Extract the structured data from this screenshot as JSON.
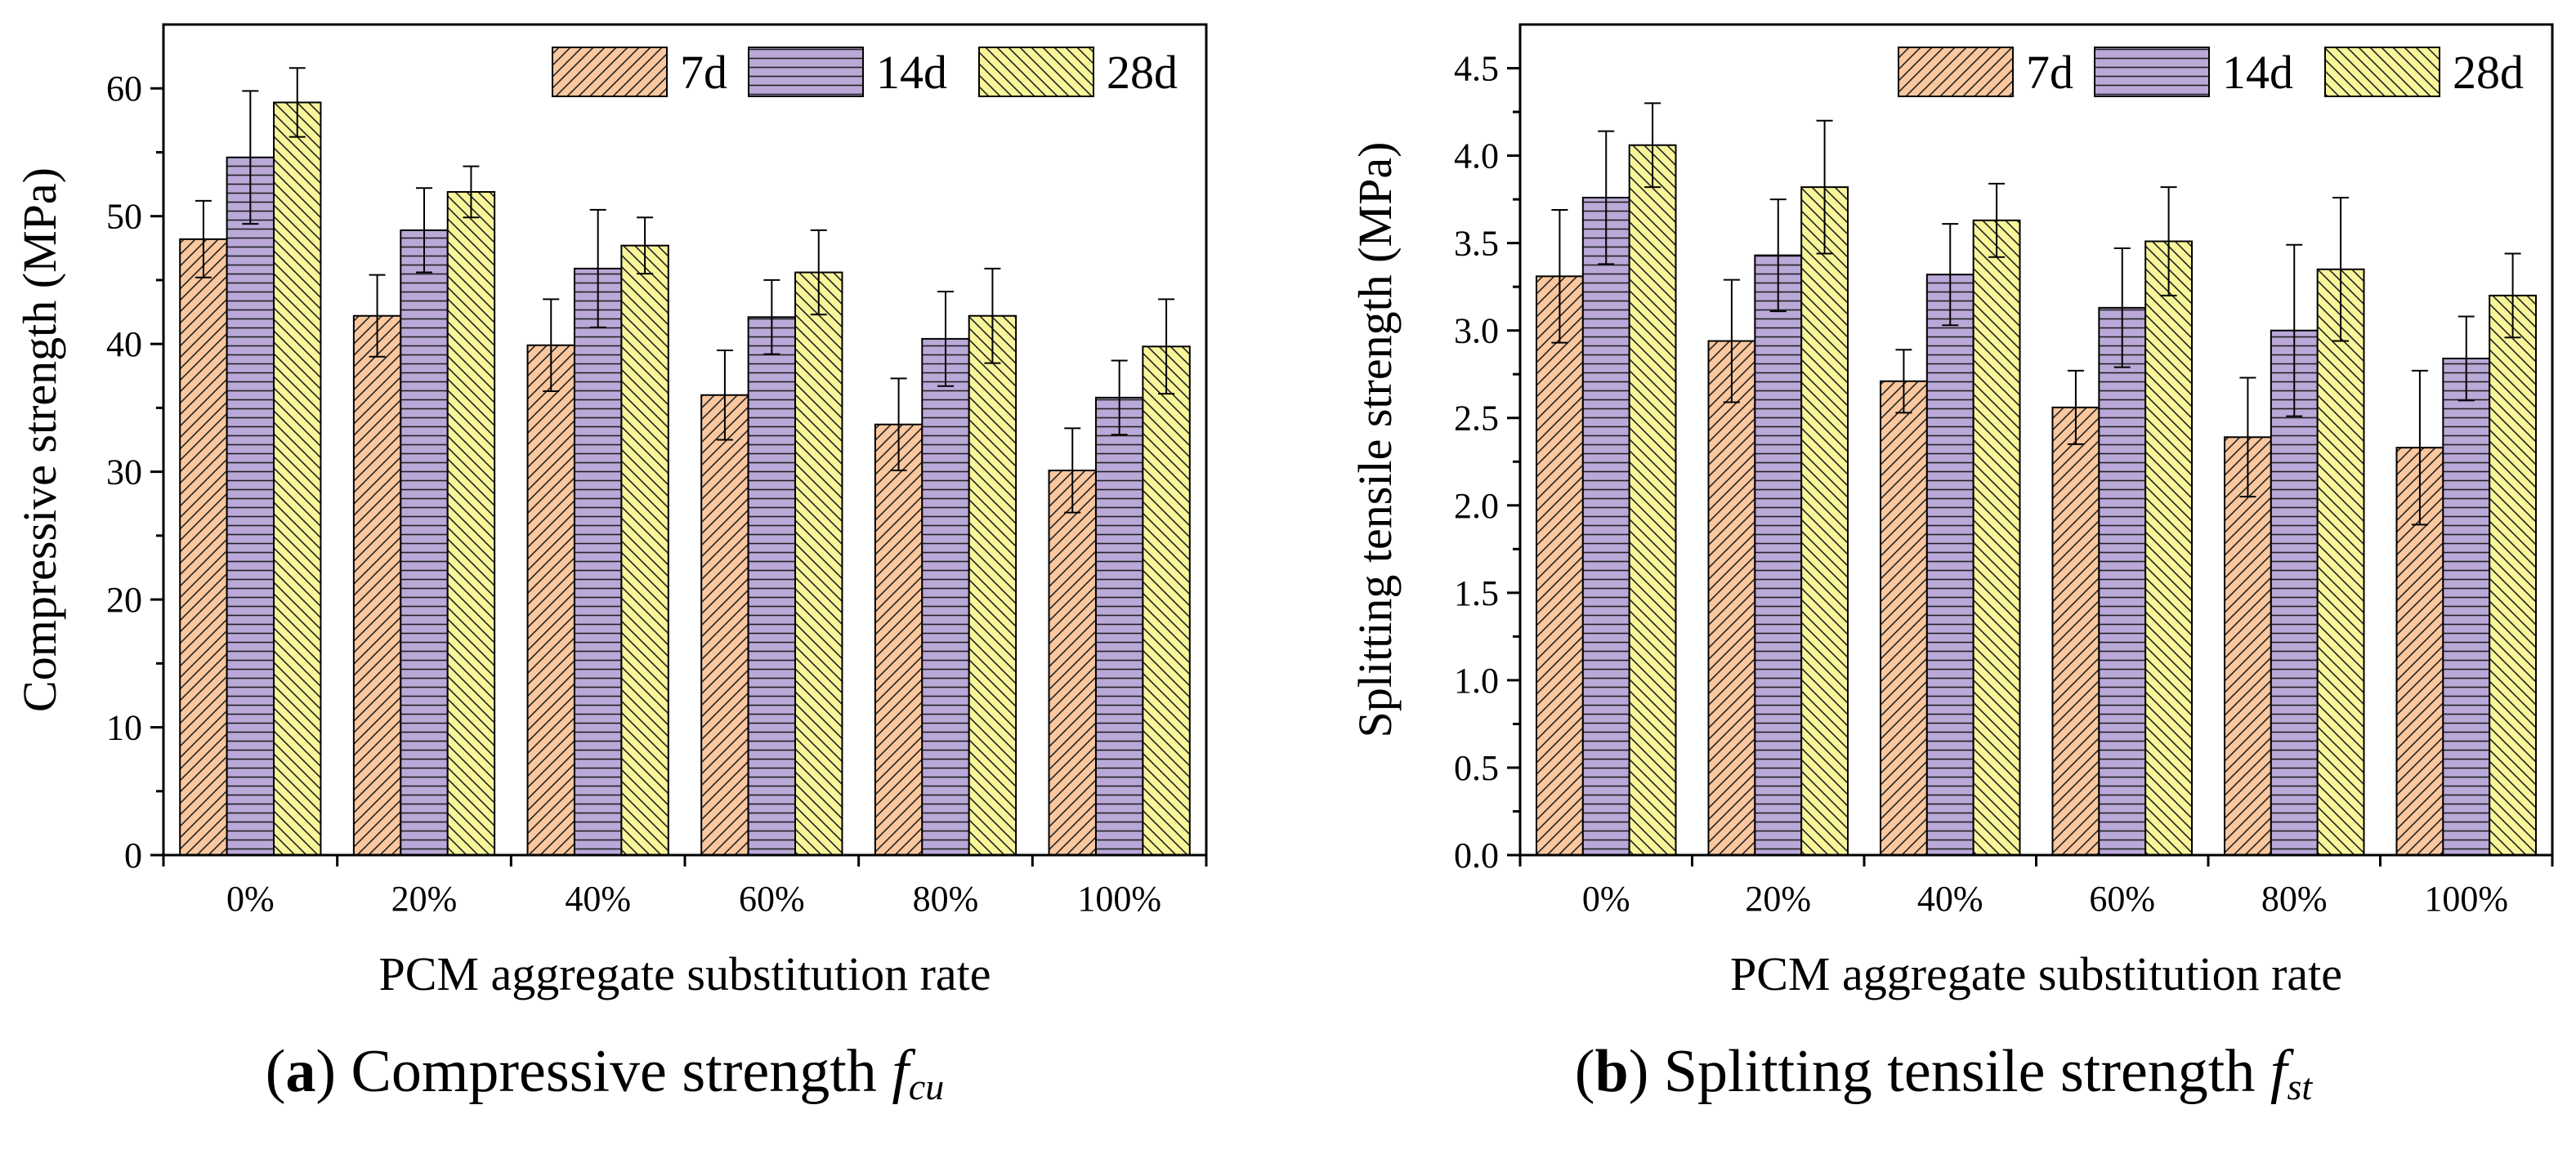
{
  "chart_data": [
    {
      "type": "bar",
      "panel_label": "a",
      "caption_text": "Compressive strength",
      "caption_symbol": "f",
      "caption_subscript": "cu",
      "xlabel": "PCM aggregate substitution rate",
      "ylabel": "Compressive strength (MPa)",
      "categories": [
        "0%",
        "20%",
        "40%",
        "60%",
        "80%",
        "100%"
      ],
      "ylim": [
        0,
        65
      ],
      "yticks": [
        "0",
        "10",
        "20",
        "30",
        "40",
        "50",
        "60"
      ],
      "tick_values": [
        0,
        10,
        20,
        30,
        40,
        50,
        60
      ],
      "series": [
        {
          "name": "7d",
          "pattern": "fdiag",
          "color": "#FAC79E",
          "values": [
            48.2,
            42.2,
            39.9,
            36.0,
            33.7,
            30.1
          ],
          "errors": [
            3.0,
            3.2,
            3.6,
            3.5,
            3.6,
            3.3
          ]
        },
        {
          "name": "14d",
          "pattern": "horiz",
          "color": "#B9A8D8",
          "values": [
            54.6,
            48.9,
            45.9,
            42.1,
            40.4,
            35.8
          ],
          "errors": [
            5.2,
            3.3,
            4.6,
            2.9,
            3.7,
            2.9
          ]
        },
        {
          "name": "28d",
          "pattern": "bdiag",
          "color": "#F8F59A",
          "values": [
            58.9,
            51.9,
            47.7,
            45.6,
            42.2,
            39.8
          ],
          "errors": [
            2.7,
            2.0,
            2.2,
            3.3,
            3.7,
            3.7
          ]
        }
      ]
    },
    {
      "type": "bar",
      "panel_label": "b",
      "caption_text": "Splitting tensile strength",
      "caption_symbol": "f",
      "caption_subscript": "st",
      "xlabel": "PCM aggregate substitution rate",
      "ylabel": "Splitting tensile strength (MPa)",
      "categories": [
        "0%",
        "20%",
        "40%",
        "60%",
        "80%",
        "100%"
      ],
      "ylim": [
        0,
        4.75
      ],
      "yticks": [
        "0.0",
        "0.5",
        "1.0",
        "1.5",
        "2.0",
        "2.5",
        "3.0",
        "3.5",
        "4.0",
        "4.5"
      ],
      "tick_values": [
        0,
        0.5,
        1.0,
        1.5,
        2.0,
        2.5,
        3.0,
        3.5,
        4.0,
        4.5
      ],
      "series": [
        {
          "name": "7d",
          "pattern": "fdiag",
          "color": "#FAC79E",
          "values": [
            3.31,
            2.94,
            2.71,
            2.56,
            2.39,
            2.33
          ],
          "errors": [
            0.38,
            0.35,
            0.18,
            0.21,
            0.34,
            0.44
          ]
        },
        {
          "name": "14d",
          "pattern": "horiz",
          "color": "#B9A8D8",
          "values": [
            3.76,
            3.43,
            3.32,
            3.13,
            3.0,
            2.84
          ],
          "errors": [
            0.38,
            0.32,
            0.29,
            0.34,
            0.49,
            0.24
          ]
        },
        {
          "name": "28d",
          "pattern": "bdiag",
          "color": "#F8F59A",
          "values": [
            4.06,
            3.82,
            3.63,
            3.51,
            3.35,
            3.2
          ],
          "errors": [
            0.24,
            0.38,
            0.21,
            0.31,
            0.41,
            0.24
          ]
        }
      ]
    }
  ]
}
